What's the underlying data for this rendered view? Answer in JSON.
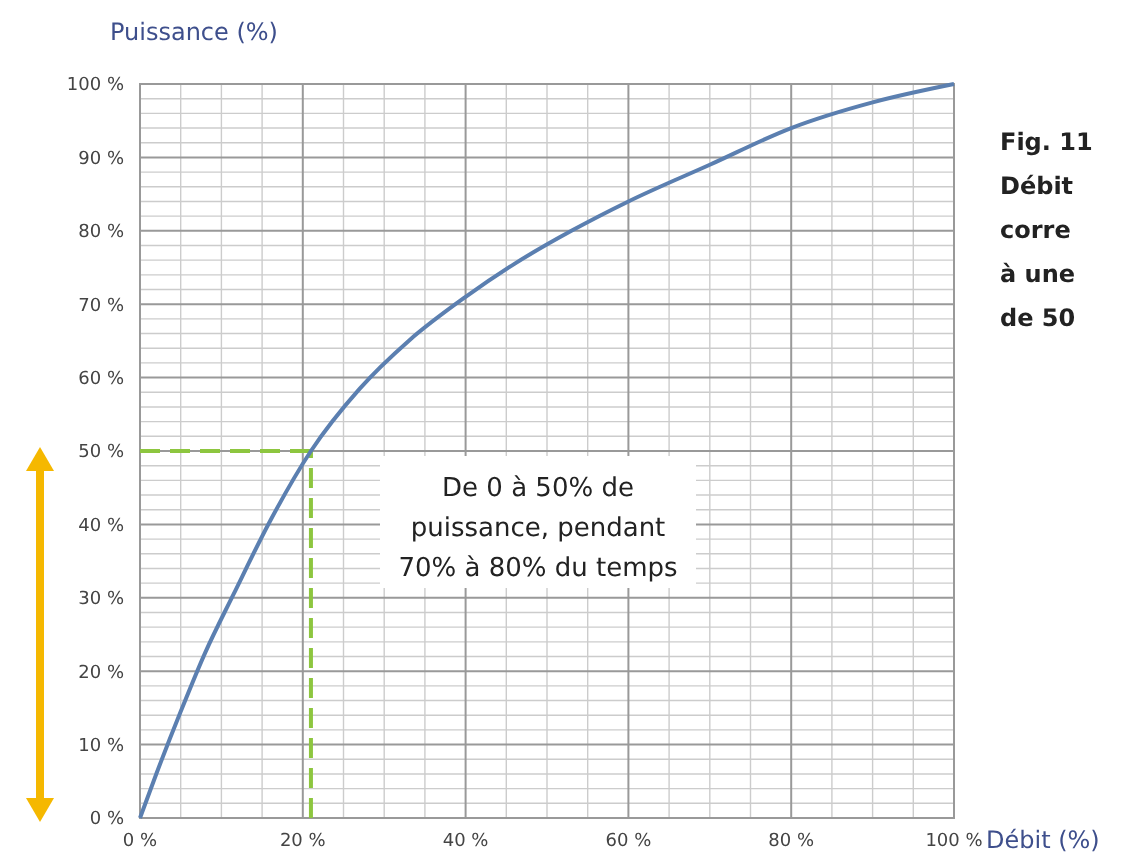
{
  "chart_data": {
    "type": "line",
    "xlabel": "Débit (%)",
    "ylabel": "Puissance (%)",
    "x": [
      0,
      2,
      5,
      8,
      11.5,
      16,
      21,
      27,
      33,
      40,
      46,
      53,
      60,
      70,
      80,
      90,
      100
    ],
    "series": [
      {
        "color": "#5b7fb0",
        "values": [
          0,
          6,
          14.5,
          22.5,
          30.5,
          40.5,
          50,
          58.5,
          65,
          71,
          75.5,
          80,
          84,
          89,
          94,
          97.5,
          100
        ]
      }
    ],
    "xlim": [
      0,
      100
    ],
    "ylim": [
      0,
      100
    ],
    "xticks": [
      {
        "value": 0,
        "label": "0 %"
      },
      {
        "value": 20,
        "label": "20 %"
      },
      {
        "value": 40,
        "label": "40 %"
      },
      {
        "value": 60,
        "label": "60 %"
      },
      {
        "value": 80,
        "label": "80 %"
      },
      {
        "value": 100,
        "label": "100 %"
      }
    ],
    "yticks": [
      {
        "value": 0,
        "label": "0 %"
      },
      {
        "value": 10,
        "label": "10 %"
      },
      {
        "value": 20,
        "label": "20 %"
      },
      {
        "value": 30,
        "label": "30 %"
      },
      {
        "value": 40,
        "label": "40 %"
      },
      {
        "value": 50,
        "label": "50 %"
      },
      {
        "value": 60,
        "label": "60 %"
      },
      {
        "value": 70,
        "label": "70 %"
      },
      {
        "value": 80,
        "label": "80 %"
      },
      {
        "value": 90,
        "label": "90 %"
      },
      {
        "value": 100,
        "label": "100 %"
      }
    ],
    "grid": true,
    "marker": "none",
    "line_style": "solid",
    "ref_lines": [
      {
        "axis": "y",
        "value": 50,
        "color": "#8dc63f",
        "line_style": "dashed"
      },
      {
        "axis": "x",
        "value": 21,
        "color": "#8dc63f",
        "line_style": "dashed"
      }
    ],
    "annotations": [
      "De 0 à 50% de\npuissance, pendant\n70% à 80% du temps",
      "Fig. 11\nDébit\ncorre\nà une\nde 50"
    ]
  }
}
